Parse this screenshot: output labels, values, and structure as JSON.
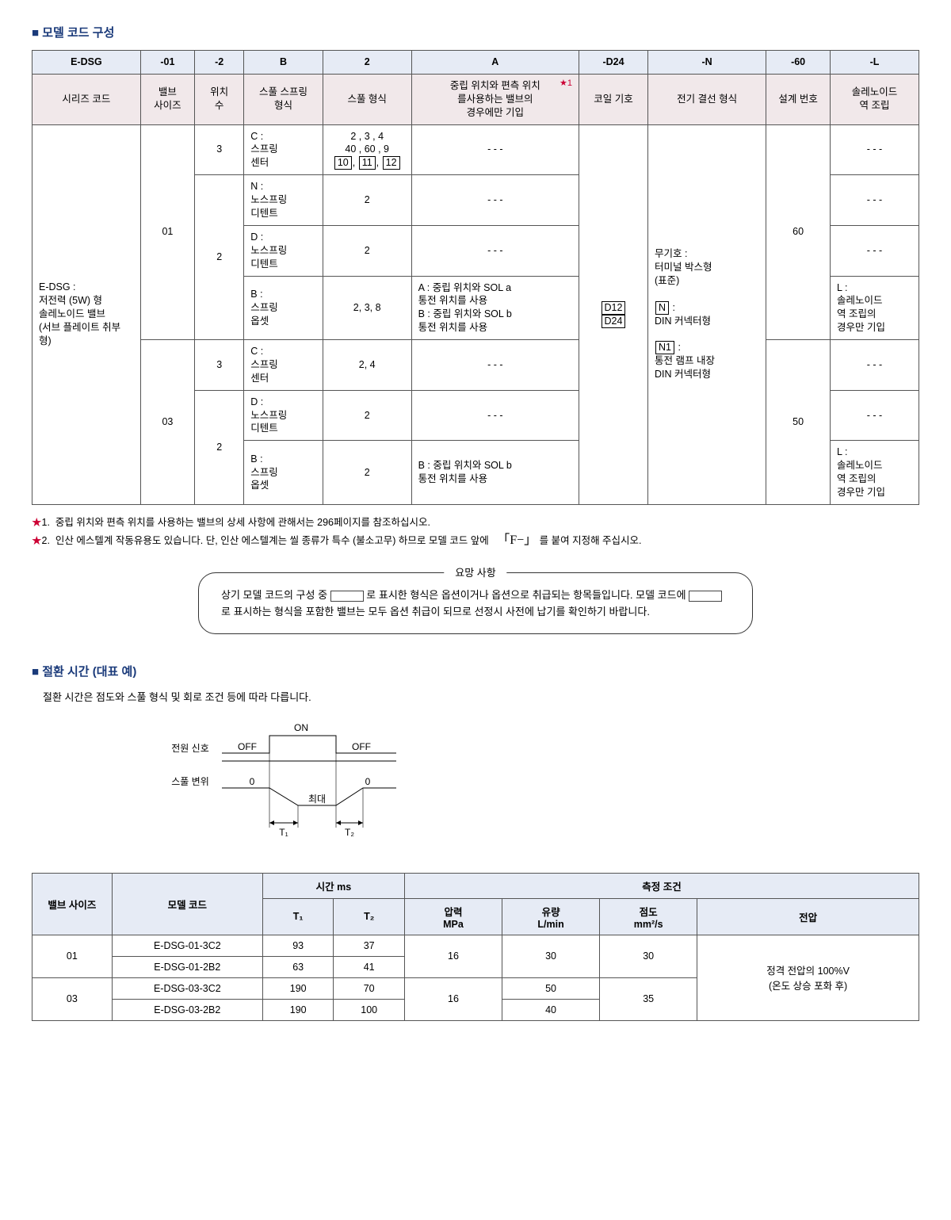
{
  "section1_title": "모델 코드 구성",
  "mc": {
    "header1": [
      "E-DSG",
      "-01",
      "-2",
      "B",
      "2",
      "A",
      "-D24",
      "-N",
      "-60",
      "-L"
    ],
    "header2": [
      "시리즈 코드",
      "밸브\n사이즈",
      "위치\n수",
      "스풀 스프링\n형식",
      "스풀 형식",
      "중립 위치와 편측 위치\n를사용하는 밸브의\n경우에만 기입",
      "코일 기호",
      "전기 결선 형식",
      "설계 번호",
      "솔레노이드\n역 조립"
    ],
    "star_ref": "★1",
    "series_label": "E-DSG   :\n저전력 (5W) 형\n솔레노이드 밸브\n(서브 플레이트 취부\n형)",
    "valve01": "01",
    "valve03": "03",
    "pos3": "3",
    "pos2": "2",
    "row1_spool": "C :\n스프링\n센터",
    "row1_form_a": "2 , 3 , 4\n40 , 60 , 9",
    "row1_form_b_boxes": [
      "10",
      "11",
      "12"
    ],
    "row2_spool": "N :\n노스프링\n디텐트",
    "row2_form": "2",
    "row3_spool": "D :\n노스프링\n디텐트",
    "row3_form": "2",
    "row4_spool": "B :\n스프링\n옵셋",
    "row4_form": "2, 3, 8",
    "row4_center": "A : 중립 위치와 SOL a\n      통전 위치를 사용\nB : 중립 위치와 SOL b\n      통전 위치를 사용",
    "row5_spool": "C :\n스프링\n센터",
    "row5_form": "2, 4",
    "row6_spool": "D :\n노스프링\n디텐트",
    "row6_form": "2",
    "row7_spool": "B :\n스프링\n옵셋",
    "row7_form": "2",
    "row7_center": "B : 중립 위치와 SOL b\n      통전 위치를 사용",
    "coil_boxes": [
      "D12",
      "D24"
    ],
    "conn_a": "무기호 :\n터미널 박스형\n(표준)",
    "conn_b_box": "N",
    "conn_b_txt": " :\nDIN 커넥터형",
    "conn_c_box": "N1",
    "conn_c_txt": " :\n통전 램프 내장\nDIN 커넥터형",
    "design60": "60",
    "design50": "50",
    "sol_L": "L :\n솔레노이드\n역 조립의\n경우만 기입",
    "dash": "- - -"
  },
  "fn1": "중립 위치와 편측 위치를 사용하는 밸브의 상세 사항에 관해서는 296페이지를 참조하십시오.",
  "fn2a": "인산 에스텔계 작동유용도 있습니다. 단, 인산 에스텔계는 씰 종류가 특수 (불소고무) 하므로 모델 코드 앞에",
  "fn2b": "를 붙여 지정해 주십시오.",
  "fn2_code": "「F−」",
  "req_label": "요망 사항",
  "req_text1": "상기 모델 코드의 구성 중 ",
  "req_text2": "로 표시한 형식은 옵션이거나 옵션으로 취급되는 항목들입니다. 모델 코드에 ",
  "req_text3": "로 표시하는 형식을 포함한 밸브는 모두 옵션 취급이 되므로 선정시 사전에 납기를 확인하기 바랍니다.",
  "section2_title": "절환 시간 (대표 예)",
  "timing_note": "절환 시간은 점도와 스풀 형식 및 회로 조건 등에 따라 다릅니다.",
  "diagram": {
    "on": "ON",
    "off": "OFF",
    "signal": "전원 신호",
    "spool": "스풀 변위",
    "zero": "0",
    "max": "최대",
    "t1": "T₁",
    "t2": "T₂"
  },
  "sw": {
    "h_valve": "밸브 사이즈",
    "h_model": "모델 코드",
    "h_time": "시간    ms",
    "h_cond": "측정 조건",
    "h_t1": "T₁",
    "h_t2": "T₂",
    "h_p": "압력\nMPa",
    "h_q": "유량\nL/min",
    "h_v": "점도\nmm²/s",
    "h_volt": "전압",
    "rows": [
      {
        "vs": "01",
        "mc": "E-DSG-01-3C2",
        "t1": "93",
        "t2": "37"
      },
      {
        "vs": "",
        "mc": "E-DSG-01-2B2",
        "t1": "63",
        "t2": "41"
      },
      {
        "vs": "03",
        "mc": "E-DSG-03-3C2",
        "t1": "190",
        "t2": "70"
      },
      {
        "vs": "",
        "mc": "E-DSG-03-2B2",
        "t1": "190",
        "t2": "100"
      }
    ],
    "p_01": "16",
    "p_03": "16",
    "q_01": "30",
    "q_03a": "50",
    "q_03b": "40",
    "v_01": "30",
    "v_03": "35",
    "volt": "정격 전압의 100%V\n(온도 상승 포화 후)"
  }
}
